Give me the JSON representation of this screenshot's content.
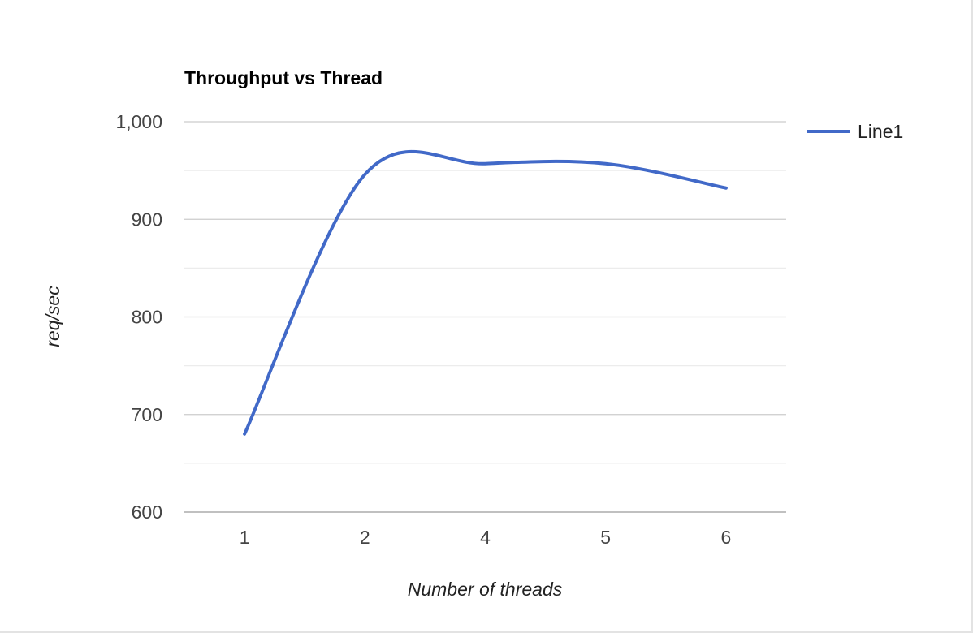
{
  "chart_data": {
    "type": "line",
    "title": "Throughput vs Thread",
    "xlabel": "Number of threads",
    "ylabel": "req/sec",
    "categories": [
      "1",
      "2",
      "4",
      "5",
      "6"
    ],
    "series": [
      {
        "name": "Line1",
        "values": [
          680,
          946,
          957,
          957,
          932
        ],
        "color": "#4169c8"
      }
    ],
    "ylim": [
      600,
      1000
    ],
    "yticks": [
      600,
      700,
      800,
      900,
      1000
    ],
    "ytick_labels": [
      "600",
      "700",
      "800",
      "900",
      "1,000"
    ],
    "grid": true,
    "smooth": true,
    "legend": "right"
  }
}
